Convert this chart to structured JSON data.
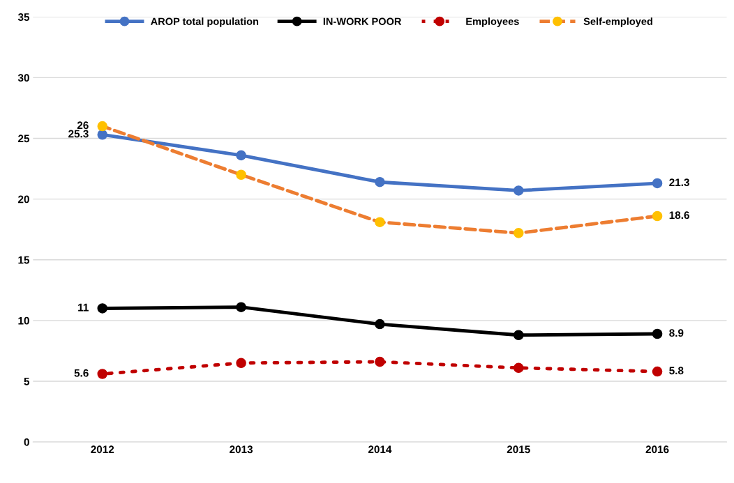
{
  "chart_data": {
    "type": "line",
    "categories": [
      "2012",
      "2013",
      "2014",
      "2015",
      "2016"
    ],
    "series": [
      {
        "name": "AROP total population",
        "color": "#4472c4",
        "line_style": "solid",
        "values": [
          25.3,
          23.6,
          21.4,
          20.7,
          21.3
        ],
        "value_labels": [
          "25.3",
          null,
          null,
          null,
          "21.3"
        ]
      },
      {
        "name": "IN-WORK POOR",
        "color": "#000000",
        "line_style": "solid",
        "values": [
          11,
          11.1,
          9.7,
          8.8,
          8.9
        ],
        "value_labels": [
          "11",
          null,
          null,
          null,
          "8.9"
        ]
      },
      {
        "name": "Employees",
        "color": "#c00000",
        "line_style": "dotted",
        "values": [
          5.6,
          6.5,
          6.6,
          6.1,
          5.8
        ],
        "value_labels": [
          "5.6",
          null,
          null,
          null,
          "5.8"
        ]
      },
      {
        "name": "Self-employed",
        "color": "#ed7d31",
        "colors": [
          "#ffc000",
          "#ffc000",
          "#ffc000",
          "#ffc000",
          "#ffc000"
        ],
        "line_style": "dashed",
        "values": [
          26,
          22,
          18.1,
          17.2,
          18.6
        ],
        "value_labels": [
          "26",
          null,
          null,
          null,
          "18.6"
        ]
      }
    ],
    "ylim": [
      0,
      35
    ],
    "yticks": [
      0,
      5,
      10,
      15,
      20,
      25,
      30,
      35
    ],
    "grid": "y",
    "legend": "top",
    "marker": "circle"
  }
}
